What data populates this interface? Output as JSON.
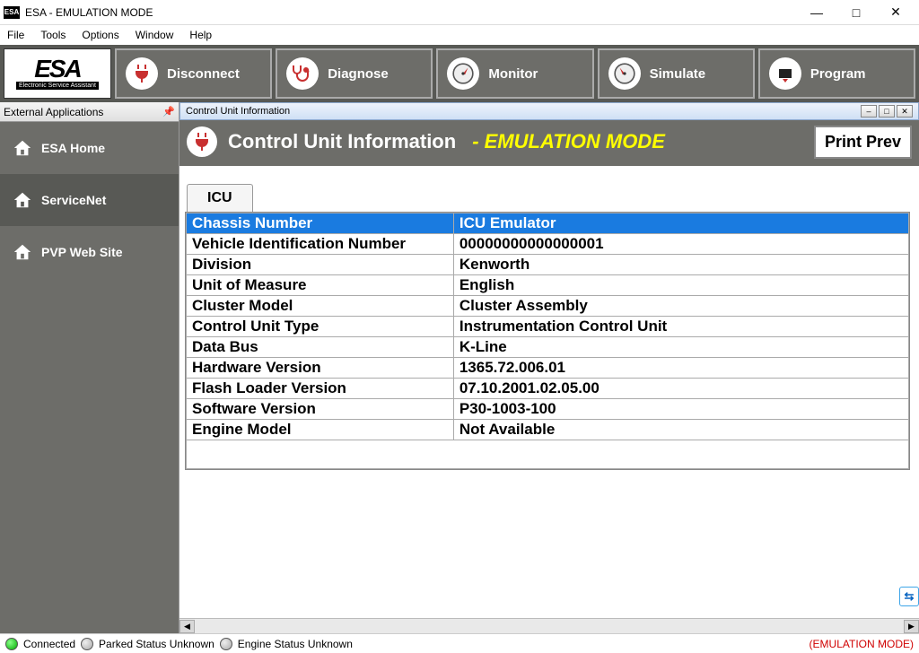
{
  "window": {
    "title": "ESA - EMULATION MODE"
  },
  "menu": {
    "items": [
      "File",
      "Tools",
      "Options",
      "Window",
      "Help"
    ]
  },
  "logo": {
    "big": "ESA",
    "small": "Electronic Service Assistant"
  },
  "toolbar": {
    "buttons": [
      {
        "label": "Disconnect"
      },
      {
        "label": "Diagnose"
      },
      {
        "label": "Monitor"
      },
      {
        "label": "Simulate"
      },
      {
        "label": "Program"
      }
    ]
  },
  "sidebar": {
    "title": "External Applications",
    "items": [
      {
        "label": "ESA Home"
      },
      {
        "label": "ServiceNet"
      },
      {
        "label": "PVP Web Site"
      }
    ]
  },
  "child": {
    "title": "Control Unit Information",
    "header": {
      "title": "Control Unit Information",
      "mode": "- EMULATION MODE",
      "print": "Print Prev"
    },
    "tab": "ICU",
    "rows": [
      {
        "k": "Chassis Number",
        "v": "ICU Emulator",
        "hl": true
      },
      {
        "k": "Vehicle Identification Number",
        "v": "00000000000000001"
      },
      {
        "k": "Division",
        "v": "Kenworth"
      },
      {
        "k": "Unit of Measure",
        "v": "English"
      },
      {
        "k": "Cluster Model",
        "v": "Cluster Assembly"
      },
      {
        "k": "Control Unit Type",
        "v": "Instrumentation Control Unit"
      },
      {
        "k": "Data Bus",
        "v": "K-Line"
      },
      {
        "k": "Hardware Version",
        "v": "1365.72.006.01"
      },
      {
        "k": "Flash Loader Version",
        "v": "07.10.2001.02.05.00"
      },
      {
        "k": "Software Version",
        "v": "P30-1003-100"
      },
      {
        "k": "Engine Model",
        "v": "Not Available"
      }
    ]
  },
  "status": {
    "items": [
      {
        "color": "green",
        "text": "Connected"
      },
      {
        "color": "grey",
        "text": "Parked Status Unknown"
      },
      {
        "color": "grey",
        "text": "Engine Status Unknown"
      }
    ],
    "right": "(EMULATION MODE)"
  },
  "colors": {
    "toolbar_bg": "#585955",
    "panel_bg": "#6d6d69",
    "highlight": "#1a7be0",
    "mode_text": "#ffff00"
  }
}
